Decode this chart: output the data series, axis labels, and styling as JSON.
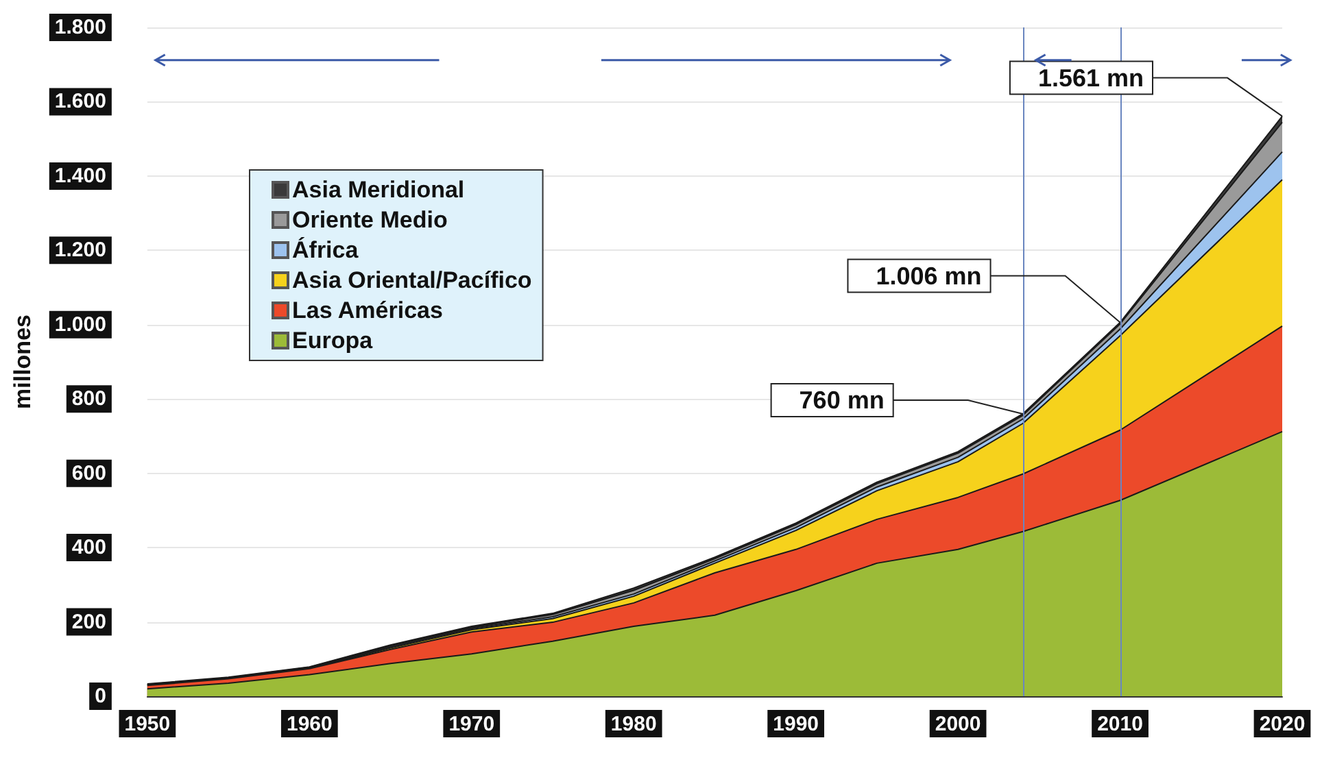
{
  "chart_data": {
    "type": "area",
    "stacked": true,
    "ylabel": "millones",
    "x": [
      1950,
      1955,
      1960,
      1965,
      1970,
      1975,
      1980,
      1985,
      1990,
      1995,
      2000,
      2004,
      2010,
      2020
    ],
    "series": [
      {
        "name": "Europa",
        "color": "#9cbb38",
        "values": [
          20,
          35,
          58,
          88,
          114,
          148,
          188,
          218,
          284,
          358,
          395,
          443,
          527,
          712
        ]
      },
      {
        "name": "Las Américas",
        "color": "#ec4a2a",
        "values": [
          9,
          12,
          16,
          38,
          59,
          51,
          63,
          114,
          111,
          118,
          140,
          155,
          189,
          284
        ]
      },
      {
        "name": "Asia Oriental/Pacífico",
        "color": "#f6d21c",
        "values": [
          1,
          1,
          1,
          4,
          6,
          10,
          18,
          26,
          51,
          77,
          96,
          136,
          254,
          394
        ]
      },
      {
        "name": "África",
        "color": "#9dc3ee",
        "values": [
          1,
          1,
          2,
          3,
          3,
          5,
          6,
          6,
          8,
          10,
          12,
          12,
          18,
          75
        ]
      },
      {
        "name": "Oriente Medio",
        "color": "#9a9a9a",
        "values": [
          1,
          1,
          1,
          3,
          3,
          6,
          10,
          6,
          8,
          9,
          11,
          10,
          14,
          80
        ]
      },
      {
        "name": "Asia Meridional",
        "color": "#3a3a3a",
        "values": [
          1,
          1,
          1,
          2,
          3,
          3,
          6,
          4,
          4,
          4,
          4,
          4,
          4,
          16
        ]
      }
    ],
    "xlim": [
      1950,
      2020
    ],
    "xticks": [
      1950,
      1960,
      1970,
      1980,
      1990,
      2000,
      2010,
      2020
    ],
    "ylim": [
      0,
      1800
    ],
    "yticks": [
      0,
      200,
      400,
      600,
      800,
      {
        "value": 1000,
        "label": "1.000"
      },
      {
        "value": 1200,
        "label": "1.200"
      },
      {
        "value": 1400,
        "label": "1.400"
      },
      {
        "value": 1600,
        "label": "1.600"
      },
      {
        "value": 1800,
        "label": "1.800"
      }
    ],
    "ref_lines": [
      {
        "axis": "x",
        "value": 2004,
        "color": "#6a86c0"
      },
      {
        "axis": "x",
        "value": 2010,
        "color": "#6a86c0"
      }
    ],
    "annotations": [
      {
        "text": "760 mn",
        "x": 2004,
        "y": 760
      },
      {
        "text": "1.006 mn",
        "x": 2010,
        "y": 1006
      },
      {
        "text": "1.561 mn",
        "x": 2020,
        "y": 1561
      }
    ],
    "grid": "y",
    "legend": "top left",
    "marker": "none"
  }
}
